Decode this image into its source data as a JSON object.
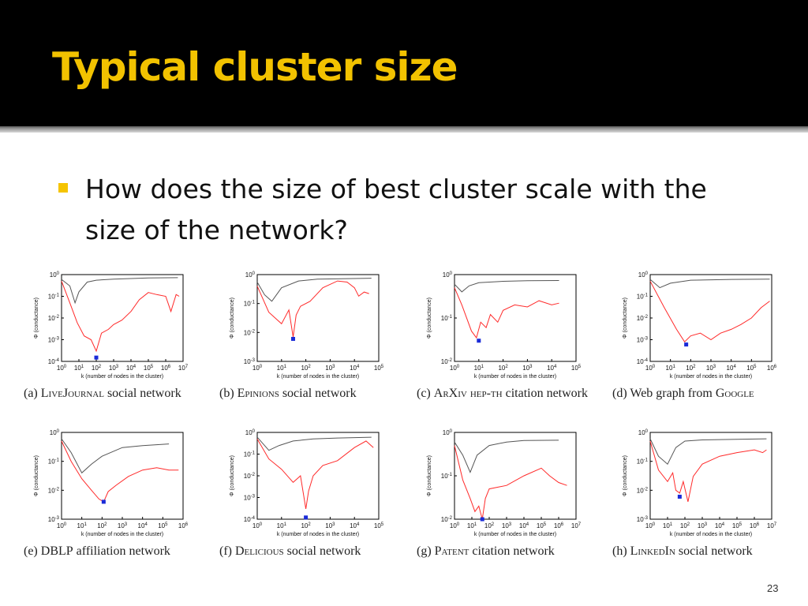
{
  "slide": {
    "title": "Typical cluster size",
    "bullet": "How does the size of best cluster scale with the size of the network?",
    "slide_number": "23"
  },
  "colors": {
    "title": "#f2c200",
    "bullet": "#f5c400",
    "best_curve": "#ff2a2a",
    "bag_curve": "#555555",
    "min_marker": "#1a2bd8"
  },
  "chart_data": [
    {
      "type": "line",
      "log_x": true,
      "log_y": true,
      "label": "(a)",
      "caption": "LiveJournal social network",
      "caption_name": "LiveJournal",
      "caption_rest": " social network",
      "xlabel": "k (number of nodes in the cluster)",
      "ylabel": "Φ (conductance)",
      "xlim": [
        1,
        10000000
      ],
      "ylim": [
        0.0001,
        1
      ],
      "xticks": [
        "10^0",
        "10^1",
        "10^2",
        "10^3",
        "10^4",
        "10^5",
        "10^6",
        "10^7"
      ],
      "yticks": [
        "10^-4",
        "10^-3",
        "10^-2",
        "10^-1",
        "10^0"
      ],
      "bag": [
        [
          1,
          0.6
        ],
        [
          3,
          0.3
        ],
        [
          6,
          0.05
        ],
        [
          10,
          0.16
        ],
        [
          30,
          0.45
        ],
        [
          100,
          0.55
        ],
        [
          1000,
          0.62
        ],
        [
          100000,
          0.7
        ],
        [
          5000000,
          0.72
        ]
      ],
      "best": [
        [
          1,
          0.5
        ],
        [
          3,
          0.05
        ],
        [
          8,
          0.006
        ],
        [
          20,
          0.0015
        ],
        [
          50,
          0.001
        ],
        [
          100,
          0.0003
        ],
        [
          200,
          0.002
        ],
        [
          500,
          0.003
        ],
        [
          1000,
          0.005
        ],
        [
          3000,
          0.008
        ],
        [
          10000,
          0.02
        ],
        [
          30000,
          0.07
        ],
        [
          100000,
          0.15
        ],
        [
          300000,
          0.12
        ],
        [
          1000000,
          0.1
        ],
        [
          2000000,
          0.02
        ],
        [
          4000000,
          0.12
        ],
        [
          6000000,
          0.1
        ]
      ],
      "minimum": [
        100,
        0.00015
      ]
    },
    {
      "type": "line",
      "log_x": true,
      "log_y": true,
      "label": "(b)",
      "caption": "Epinions social network",
      "caption_name": "Epinions",
      "caption_rest": " social network",
      "xlabel": "k (number of nodes in the cluster)",
      "ylabel": "Φ (conductance)",
      "xlim": [
        1,
        100000
      ],
      "ylim": [
        0.001,
        1
      ],
      "xticks": [
        "10^0",
        "10^1",
        "10^2",
        "10^3",
        "10^4",
        "10^5"
      ],
      "yticks": [
        "10^-3",
        "10^-2",
        "10^-1",
        "10^0"
      ],
      "bag": [
        [
          1,
          0.55
        ],
        [
          2,
          0.2
        ],
        [
          4,
          0.12
        ],
        [
          10,
          0.35
        ],
        [
          50,
          0.6
        ],
        [
          300,
          0.7
        ],
        [
          3000,
          0.72
        ],
        [
          50000,
          0.75
        ]
      ],
      "best": [
        [
          1,
          0.4
        ],
        [
          3,
          0.05
        ],
        [
          10,
          0.02
        ],
        [
          20,
          0.06
        ],
        [
          30,
          0.007
        ],
        [
          40,
          0.04
        ],
        [
          60,
          0.08
        ],
        [
          150,
          0.12
        ],
        [
          500,
          0.35
        ],
        [
          2000,
          0.6
        ],
        [
          5000,
          0.55
        ],
        [
          10000,
          0.35
        ],
        [
          15000,
          0.18
        ],
        [
          25000,
          0.25
        ],
        [
          40000,
          0.22
        ]
      ],
      "minimum": [
        30,
        0.006
      ]
    },
    {
      "type": "line",
      "log_x": true,
      "log_y": true,
      "label": "(c)",
      "caption": "ArXiv hep-th citation network",
      "caption_name": "ArXiv hep-th",
      "caption_rest": " citation network",
      "xlabel": "k (number of nodes in the cluster)",
      "ylabel": "Φ (conductance)",
      "xlim": [
        1,
        100000
      ],
      "ylim": [
        0.01,
        1
      ],
      "xticks": [
        "10^0",
        "10^1",
        "10^2",
        "10^3",
        "10^4",
        "10^5"
      ],
      "yticks": [
        "10^-2",
        "10^-1",
        "10^0"
      ],
      "bag": [
        [
          1,
          0.6
        ],
        [
          2,
          0.4
        ],
        [
          4,
          0.55
        ],
        [
          10,
          0.65
        ],
        [
          100,
          0.7
        ],
        [
          1000,
          0.72
        ],
        [
          20000,
          0.73
        ]
      ],
      "best": [
        [
          1,
          0.5
        ],
        [
          2,
          0.2
        ],
        [
          5,
          0.05
        ],
        [
          8,
          0.035
        ],
        [
          12,
          0.08
        ],
        [
          20,
          0.06
        ],
        [
          30,
          0.12
        ],
        [
          60,
          0.08
        ],
        [
          100,
          0.15
        ],
        [
          300,
          0.2
        ],
        [
          1000,
          0.18
        ],
        [
          3000,
          0.25
        ],
        [
          10000,
          0.2
        ],
        [
          20000,
          0.22
        ]
      ],
      "minimum": [
        10,
        0.03
      ]
    },
    {
      "type": "line",
      "log_x": true,
      "log_y": true,
      "label": "(d)",
      "caption": "Web graph from Google",
      "caption_name": "Google",
      "caption_rest": "Web graph from ",
      "xlabel": "k (number of nodes in the cluster)",
      "ylabel": "Φ (conductance)",
      "xlim": [
        1,
        1000000
      ],
      "ylim": [
        0.0001,
        1
      ],
      "xticks": [
        "10^0",
        "10^1",
        "10^2",
        "10^3",
        "10^4",
        "10^5",
        "10^6"
      ],
      "yticks": [
        "10^-4",
        "10^-3",
        "10^-2",
        "10^-1",
        "10^0"
      ],
      "bag": [
        [
          1,
          0.6
        ],
        [
          3,
          0.25
        ],
        [
          10,
          0.4
        ],
        [
          100,
          0.55
        ],
        [
          10000,
          0.6
        ],
        [
          800000,
          0.62
        ]
      ],
      "best": [
        [
          1,
          0.5
        ],
        [
          5,
          0.03
        ],
        [
          20,
          0.003
        ],
        [
          50,
          0.0008
        ],
        [
          100,
          0.0015
        ],
        [
          300,
          0.002
        ],
        [
          1000,
          0.001
        ],
        [
          3000,
          0.002
        ],
        [
          10000,
          0.003
        ],
        [
          30000,
          0.005
        ],
        [
          100000,
          0.01
        ],
        [
          300000,
          0.03
        ],
        [
          800000,
          0.06
        ]
      ],
      "minimum": [
        60,
        0.0006
      ]
    },
    {
      "type": "line",
      "log_x": true,
      "log_y": true,
      "label": "(e)",
      "caption": "DBLP affiliation network",
      "caption_name": "DBLP",
      "caption_rest": " affiliation network",
      "xlabel": "k (number of nodes in the cluster)",
      "ylabel": "Φ (conductance)",
      "xlim": [
        1,
        1000000
      ],
      "ylim": [
        0.001,
        1
      ],
      "xticks": [
        "10^0",
        "10^1",
        "10^2",
        "10^3",
        "10^4",
        "10^5",
        "10^6"
      ],
      "yticks": [
        "10^-3",
        "10^-2",
        "10^-1",
        "10^0"
      ],
      "bag": [
        [
          1,
          0.6
        ],
        [
          3,
          0.2
        ],
        [
          10,
          0.04
        ],
        [
          30,
          0.08
        ],
        [
          100,
          0.15
        ],
        [
          1000,
          0.3
        ],
        [
          10000,
          0.35
        ],
        [
          200000,
          0.4
        ]
      ],
      "best": [
        [
          1,
          0.5
        ],
        [
          3,
          0.1
        ],
        [
          10,
          0.025
        ],
        [
          30,
          0.01
        ],
        [
          70,
          0.005
        ],
        [
          120,
          0.004
        ],
        [
          200,
          0.009
        ],
        [
          500,
          0.015
        ],
        [
          2000,
          0.03
        ],
        [
          10000,
          0.05
        ],
        [
          50000,
          0.06
        ],
        [
          200000,
          0.05
        ],
        [
          600000,
          0.05
        ]
      ],
      "minimum": [
        120,
        0.004
      ]
    },
    {
      "type": "line",
      "log_x": true,
      "log_y": true,
      "label": "(f)",
      "caption": "Delicious social network",
      "caption_name": "Delicious",
      "caption_rest": " social network",
      "xlabel": "k (number of nodes in the cluster)",
      "ylabel": "Φ (conductance)",
      "xlim": [
        1,
        100000
      ],
      "ylim": [
        0.0001,
        1
      ],
      "xticks": [
        "10^0",
        "10^1",
        "10^2",
        "10^3",
        "10^4",
        "10^5"
      ],
      "yticks": [
        "10^-4",
        "10^-3",
        "10^-2",
        "10^-1",
        "10^0"
      ],
      "bag": [
        [
          1,
          0.6
        ],
        [
          3,
          0.15
        ],
        [
          8,
          0.25
        ],
        [
          30,
          0.4
        ],
        [
          200,
          0.5
        ],
        [
          2000,
          0.55
        ],
        [
          50000,
          0.6
        ]
      ],
      "best": [
        [
          1,
          0.5
        ],
        [
          3,
          0.06
        ],
        [
          10,
          0.02
        ],
        [
          30,
          0.005
        ],
        [
          60,
          0.01
        ],
        [
          100,
          0.0003
        ],
        [
          130,
          0.002
        ],
        [
          200,
          0.01
        ],
        [
          500,
          0.03
        ],
        [
          2000,
          0.05
        ],
        [
          10000,
          0.2
        ],
        [
          30000,
          0.4
        ],
        [
          60000,
          0.2
        ]
      ],
      "minimum": [
        100,
        0.00012
      ]
    },
    {
      "type": "line",
      "log_x": true,
      "log_y": true,
      "label": "(g)",
      "caption": "Patent citation network",
      "caption_name": "Patent",
      "caption_rest": " citation network",
      "xlabel": "k (number of nodes in the cluster)",
      "ylabel": "Φ (conductance)",
      "xlim": [
        1,
        10000000
      ],
      "ylim": [
        0.01,
        1
      ],
      "xticks": [
        "10^0",
        "10^1",
        "10^2",
        "10^3",
        "10^4",
        "10^5",
        "10^6",
        "10^7"
      ],
      "yticks": [
        "10^-2",
        "10^-1",
        "10^0"
      ],
      "bag": [
        [
          1,
          0.6
        ],
        [
          3,
          0.3
        ],
        [
          8,
          0.12
        ],
        [
          20,
          0.3
        ],
        [
          100,
          0.5
        ],
        [
          1000,
          0.6
        ],
        [
          10000,
          0.65
        ],
        [
          1000000,
          0.66
        ]
      ],
      "best": [
        [
          1,
          0.5
        ],
        [
          3,
          0.08
        ],
        [
          8,
          0.03
        ],
        [
          15,
          0.015
        ],
        [
          25,
          0.02
        ],
        [
          40,
          0.01
        ],
        [
          60,
          0.03
        ],
        [
          100,
          0.05
        ],
        [
          1000,
          0.06
        ],
        [
          10000,
          0.1
        ],
        [
          100000,
          0.15
        ],
        [
          300000,
          0.1
        ],
        [
          1000000,
          0.07
        ],
        [
          3000000,
          0.06
        ]
      ],
      "minimum": [
        40,
        0.01
      ]
    },
    {
      "type": "line",
      "log_x": true,
      "log_y": true,
      "label": "(h)",
      "caption": "LinkedIn social network",
      "caption_name": "LinkedIn",
      "caption_rest": " social network",
      "xlabel": "k (number of nodes in the cluster)",
      "ylabel": "Φ (conductance)",
      "xlim": [
        1,
        10000000
      ],
      "ylim": [
        0.001,
        1
      ],
      "xticks": [
        "10^0",
        "10^1",
        "10^2",
        "10^3",
        "10^4",
        "10^5",
        "10^6",
        "10^7"
      ],
      "yticks": [
        "10^-3",
        "10^-2",
        "10^-1",
        "10^0"
      ],
      "bag": [
        [
          1,
          0.6
        ],
        [
          3,
          0.15
        ],
        [
          10,
          0.08
        ],
        [
          30,
          0.3
        ],
        [
          100,
          0.5
        ],
        [
          1000,
          0.55
        ],
        [
          100000,
          0.58
        ],
        [
          5000000,
          0.6
        ]
      ],
      "best": [
        [
          1,
          0.5
        ],
        [
          3,
          0.05
        ],
        [
          10,
          0.02
        ],
        [
          20,
          0.04
        ],
        [
          30,
          0.01
        ],
        [
          50,
          0.008
        ],
        [
          80,
          0.02
        ],
        [
          150,
          0.004
        ],
        [
          300,
          0.03
        ],
        [
          1000,
          0.08
        ],
        [
          10000,
          0.15
        ],
        [
          100000,
          0.2
        ],
        [
          1000000,
          0.25
        ],
        [
          3000000,
          0.2
        ],
        [
          5000000,
          0.25
        ]
      ],
      "minimum": [
        50,
        0.006
      ]
    }
  ]
}
